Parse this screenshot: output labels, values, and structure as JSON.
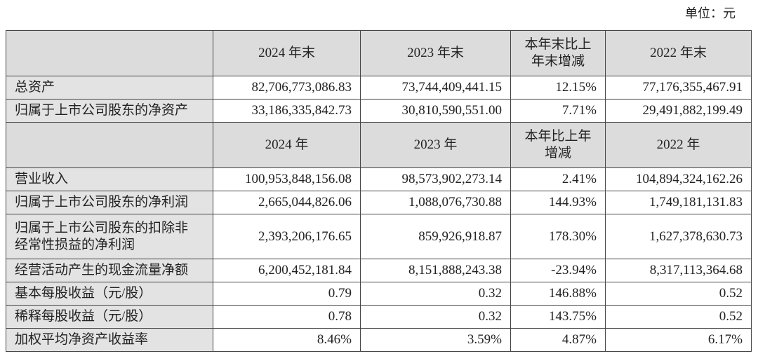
{
  "unit": "单位：元",
  "sections": [
    {
      "header": [
        "2024 年末",
        "2023 年末",
        "本年末比上年末增减",
        "2022 年末"
      ],
      "rows": [
        [
          "总资产",
          "82,706,773,086.83",
          "73,744,409,441.15",
          "12.15%",
          "77,176,355,467.91"
        ],
        [
          "归属于上市公司股东的净资产",
          "33,186,335,842.73",
          "30,810,590,551.00",
          "7.71%",
          "29,491,882,199.49"
        ]
      ]
    },
    {
      "header": [
        "2024 年",
        "2023 年",
        "本年比上年增减",
        "2022 年"
      ],
      "rows": [
        [
          "营业收入",
          "100,953,848,156.08",
          "98,573,902,273.14",
          "2.41%",
          "104,894,324,162.26"
        ],
        [
          "归属于上市公司股东的净利润",
          "2,665,044,826.06",
          "1,088,076,730.88",
          "144.93%",
          "1,749,181,131.83"
        ],
        [
          "归属于上市公司股东的扣除非经常性损益的净利润",
          "2,393,206,176.65",
          "859,926,918.87",
          "178.30%",
          "1,627,378,630.73"
        ],
        [
          "经营活动产生的现金流量净额",
          "6,200,452,181.84",
          "8,151,888,243.38",
          "-23.94%",
          "8,317,113,364.68"
        ],
        [
          "基本每股收益（元/股）",
          "0.79",
          "0.32",
          "146.88%",
          "0.52"
        ],
        [
          "稀释每股收益（元/股）",
          "0.78",
          "0.32",
          "143.75%",
          "0.52"
        ],
        [
          "加权平均净资产收益率",
          "8.46%",
          "3.59%",
          "4.87%",
          "6.17%"
        ]
      ]
    }
  ]
}
